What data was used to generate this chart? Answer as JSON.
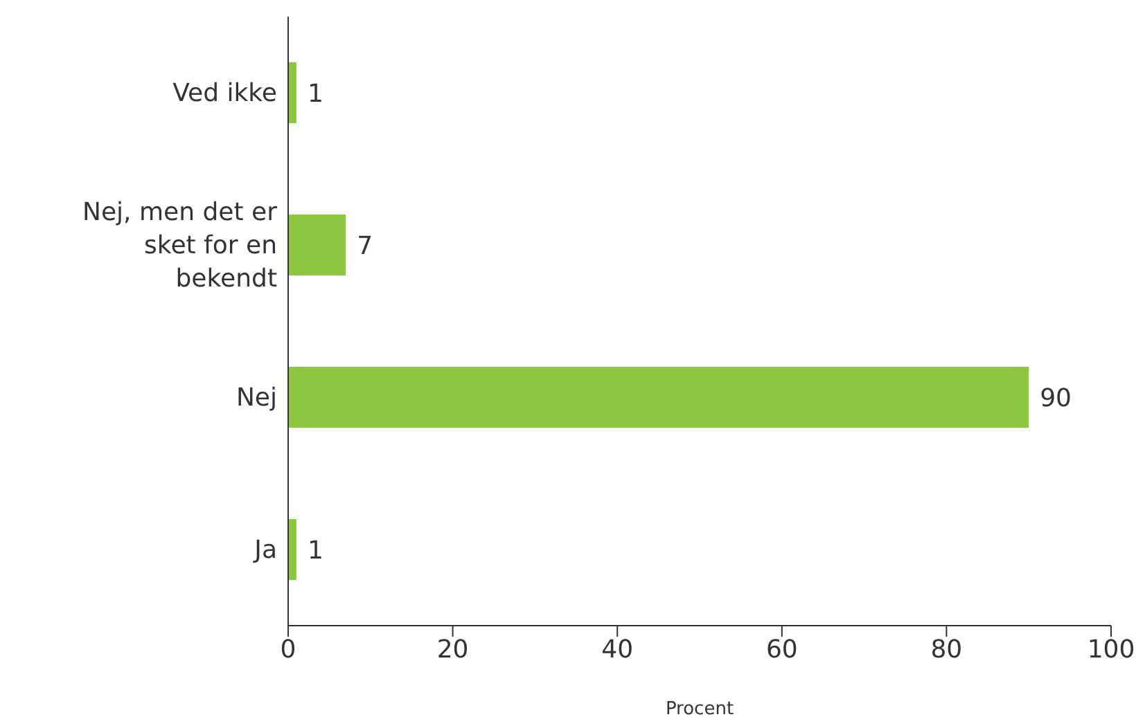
{
  "chart_data": {
    "type": "bar",
    "orientation": "horizontal",
    "categories": [
      "Ved ikke",
      "Nej, men det er sket for en bekendt",
      "Nej",
      "Ja"
    ],
    "values": [
      1,
      7,
      90,
      1
    ],
    "color": "#8dc63f",
    "xlim": [
      0,
      100
    ],
    "xticks": [
      0,
      20,
      40,
      60,
      80,
      100
    ],
    "xlabel": "Procent",
    "grid": false,
    "legend": false,
    "data_labels": true
  }
}
